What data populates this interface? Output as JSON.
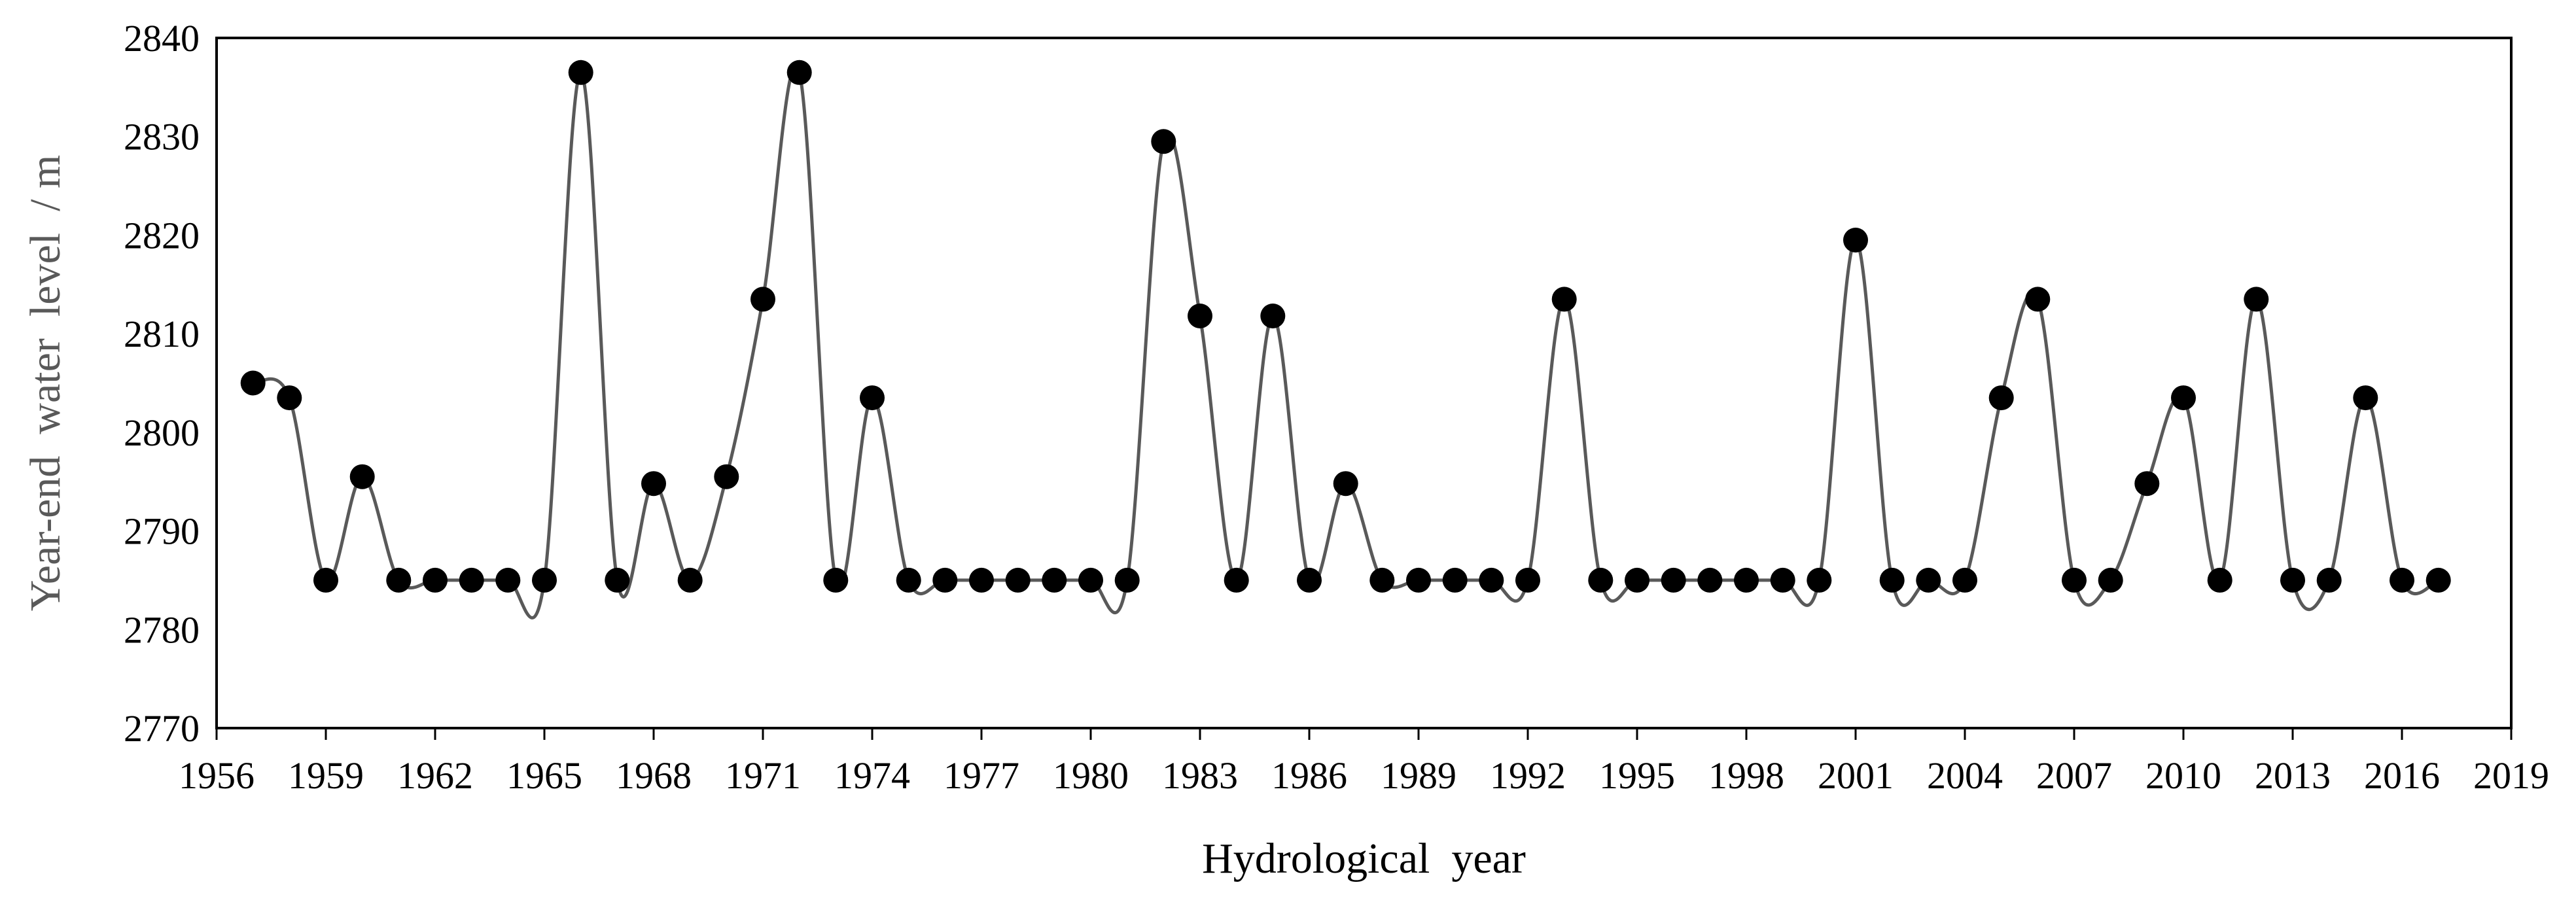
{
  "chart_data": {
    "type": "line",
    "xlabel": "Hydrological  year",
    "ylabel": "Year-end  water  level  / m",
    "xlim": [
      1956,
      2019
    ],
    "ylim": [
      2770,
      2840
    ],
    "x_ticks": [
      1956,
      1959,
      1962,
      1965,
      1968,
      1971,
      1974,
      1977,
      1980,
      1983,
      1986,
      1989,
      1992,
      1995,
      1998,
      2001,
      2004,
      2007,
      2010,
      2013,
      2016,
      2019
    ],
    "y_ticks": [
      2770,
      2780,
      2790,
      2800,
      2810,
      2820,
      2830,
      2840
    ],
    "grid": false,
    "legend": "none",
    "line_style": "smoothed",
    "colors": {
      "line": "#595959",
      "marker": "#000000",
      "frame": "#000000"
    },
    "x": [
      1957,
      1958,
      1959,
      1960,
      1961,
      1962,
      1963,
      1964,
      1965,
      1966,
      1967,
      1968,
      1969,
      1970,
      1971,
      1972,
      1973,
      1974,
      1975,
      1976,
      1977,
      1978,
      1979,
      1980,
      1981,
      1982,
      1983,
      1984,
      1985,
      1986,
      1987,
      1988,
      1989,
      1990,
      1991,
      1992,
      1993,
      1994,
      1995,
      1996,
      1997,
      1998,
      1999,
      2000,
      2001,
      2002,
      2003,
      2004,
      2005,
      2006,
      2007,
      2008,
      2009,
      2010,
      2011,
      2012,
      2013,
      2014,
      2015,
      2016,
      2017
    ],
    "values": [
      2805,
      2803.5,
      2785,
      2795.5,
      2785,
      2785,
      2785,
      2785,
      2785,
      2836.5,
      2785,
      2794.8,
      2785,
      2795.5,
      2813.5,
      2836.5,
      2785,
      2803.5,
      2785,
      2785,
      2785,
      2785,
      2785,
      2785,
      2785,
      2829.5,
      2811.8,
      2785,
      2811.8,
      2785,
      2794.8,
      2785,
      2785,
      2785,
      2785,
      2785,
      2813.5,
      2785,
      2785,
      2785,
      2785,
      2785,
      2785,
      2785,
      2819.5,
      2785,
      2785,
      2785,
      2803.5,
      2813.5,
      2785,
      2785,
      2794.8,
      2803.5,
      2785,
      2813.5,
      2785,
      2785,
      2803.5,
      2785,
      2785
    ]
  }
}
